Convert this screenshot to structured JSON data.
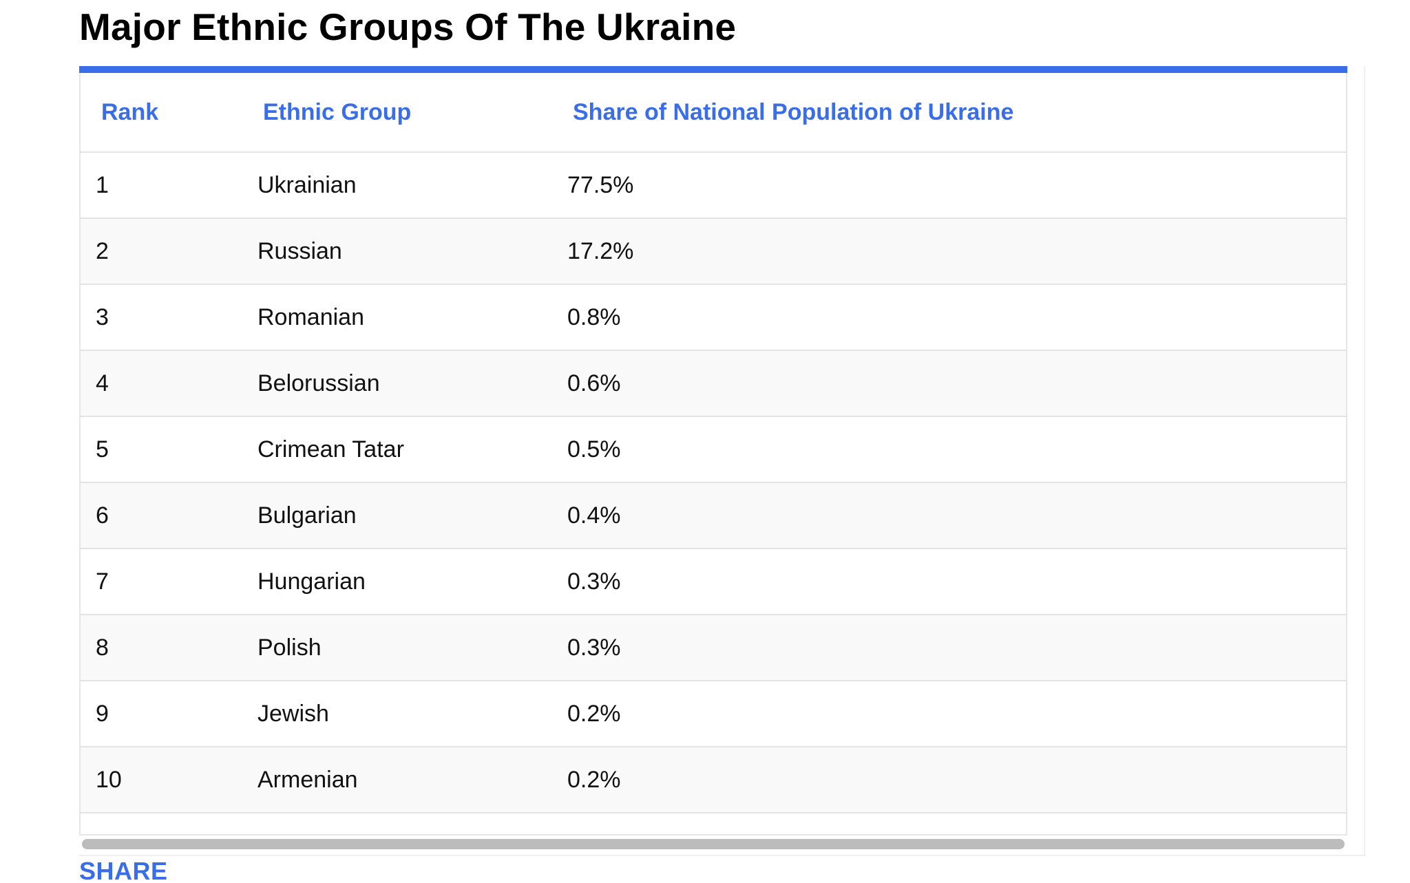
{
  "title": "Major Ethnic Groups Of The Ukraine",
  "accent_color": "#3a6ee8",
  "table": {
    "headers": {
      "rank": "Rank",
      "group": "Ethnic Group",
      "share": "Share of National Population of Ukraine"
    },
    "rows": [
      {
        "rank": "1",
        "group": "Ukrainian",
        "share": "77.5%"
      },
      {
        "rank": "2",
        "group": "Russian",
        "share": "17.2%"
      },
      {
        "rank": "3",
        "group": "Romanian",
        "share": "0.8%"
      },
      {
        "rank": "4",
        "group": "Belorussian",
        "share": "0.6%"
      },
      {
        "rank": "5",
        "group": "Crimean Tatar",
        "share": "0.5%"
      },
      {
        "rank": "6",
        "group": "Bulgarian",
        "share": "0.4%"
      },
      {
        "rank": "7",
        "group": "Hungarian",
        "share": "0.3%"
      },
      {
        "rank": "8",
        "group": "Polish",
        "share": "0.3%"
      },
      {
        "rank": "9",
        "group": "Jewish",
        "share": "0.2%"
      },
      {
        "rank": "10",
        "group": "Armenian",
        "share": "0.2%"
      }
    ]
  },
  "share_label": "SHARE"
}
